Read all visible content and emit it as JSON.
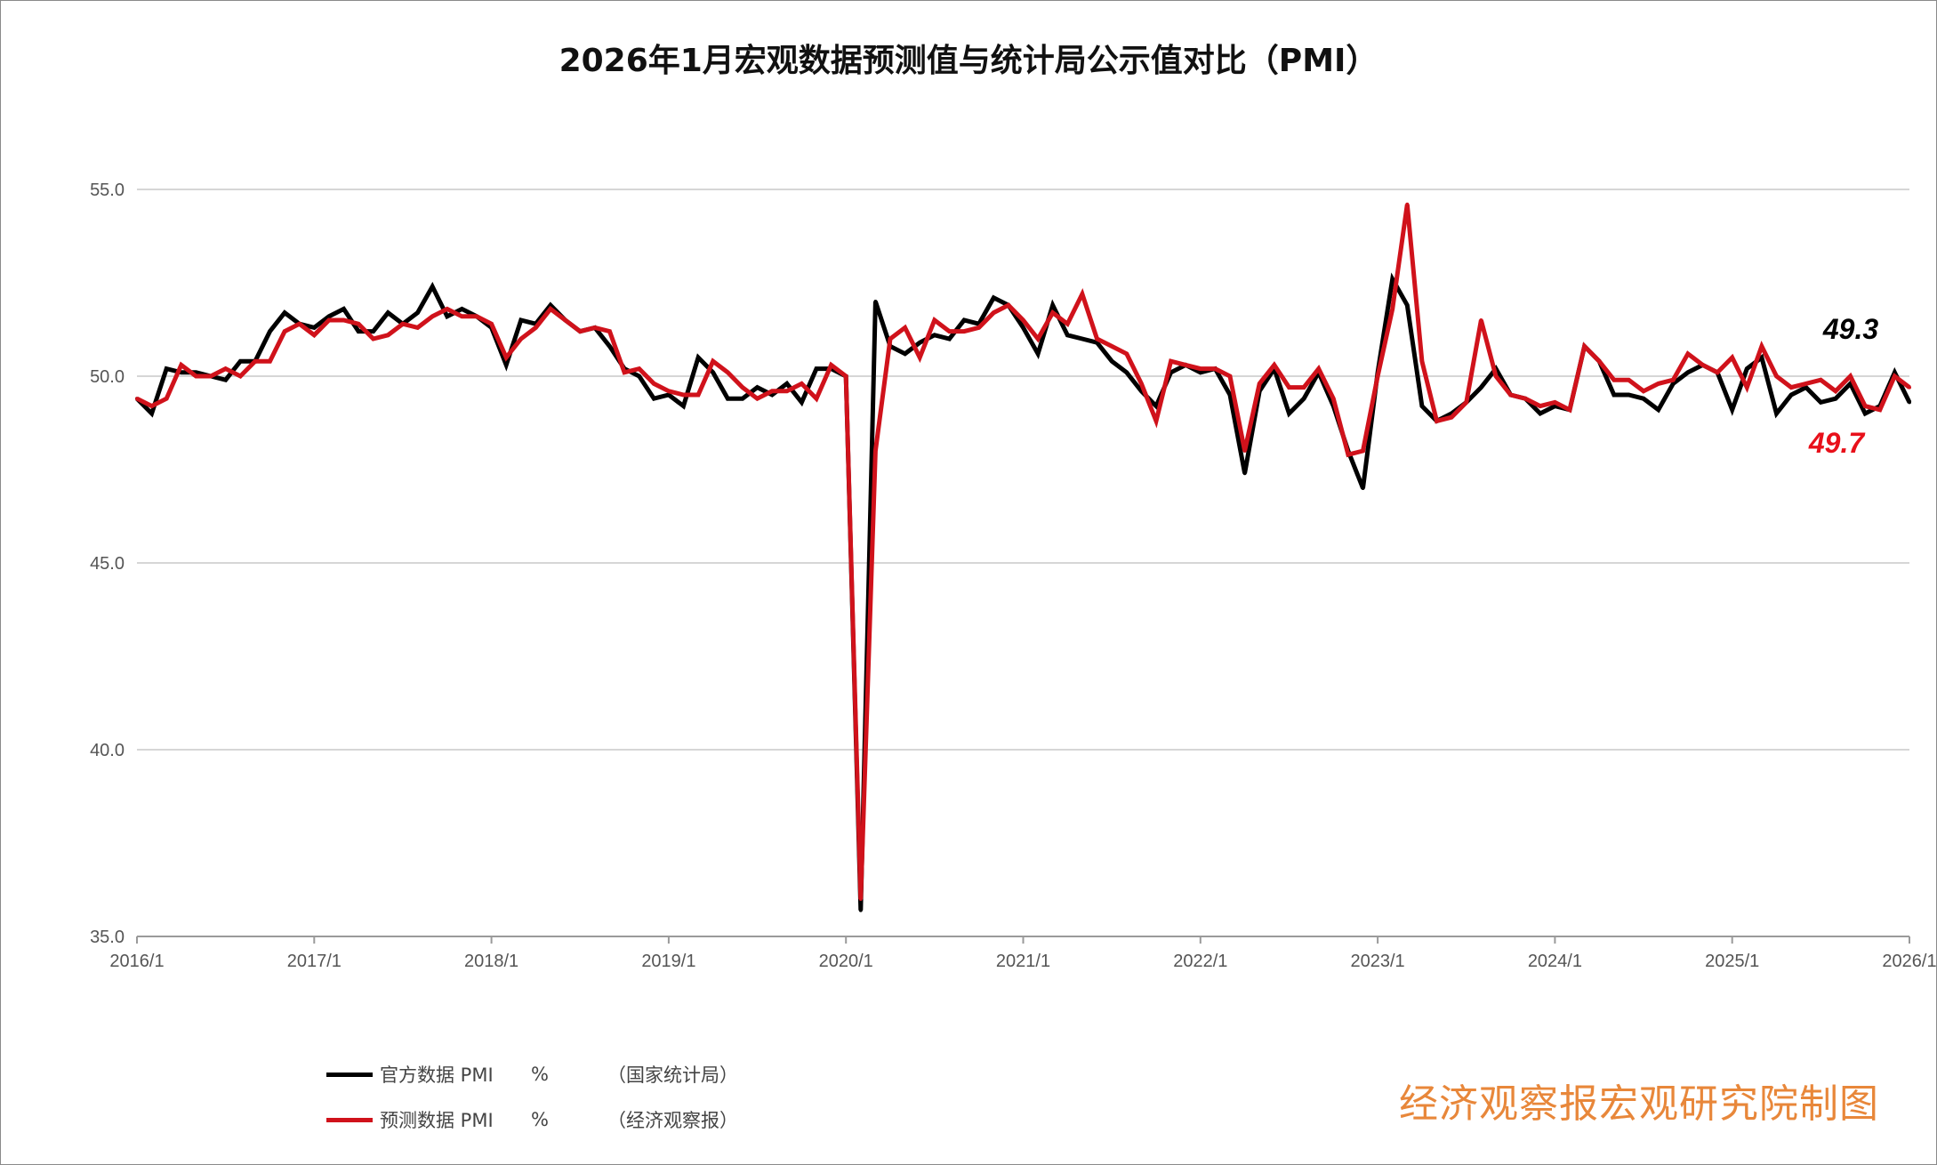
{
  "chart_data": {
    "type": "line",
    "title": "2026年1月宏观数据预测值与统计局公示值对比（PMI）",
    "xlabel": "",
    "ylabel": "",
    "ylim": [
      35,
      55
    ],
    "yticks": [
      "55.0",
      "50.0",
      "45.0",
      "40.0",
      "35.0"
    ],
    "xticks": [
      "2016/1",
      "2017/1",
      "2018/1",
      "2019/1",
      "2020/1",
      "2021/1",
      "2022/1",
      "2023/1",
      "2024/1",
      "2025/1",
      "2026/1"
    ],
    "x_start": "2016/1",
    "x_end": "2026/1",
    "grid": "horizontal",
    "legend_position": "bottom-left",
    "series": [
      {
        "name": "官方数据 PMI",
        "unit": "%",
        "source": "（国家统计局）",
        "color": "#000000",
        "values": [
          49.4,
          49.0,
          50.2,
          50.1,
          50.1,
          50.0,
          49.9,
          50.4,
          50.4,
          51.2,
          51.7,
          51.4,
          51.3,
          51.6,
          51.8,
          51.2,
          51.2,
          51.7,
          51.4,
          51.7,
          52.4,
          51.6,
          51.8,
          51.6,
          51.3,
          50.3,
          51.5,
          51.4,
          51.9,
          51.5,
          51.2,
          51.3,
          50.8,
          50.2,
          50.0,
          49.4,
          49.5,
          49.2,
          50.5,
          50.1,
          49.4,
          49.4,
          49.7,
          49.5,
          49.8,
          49.3,
          50.2,
          50.2,
          50.0,
          35.7,
          52.0,
          50.8,
          50.6,
          50.9,
          51.1,
          51.0,
          51.5,
          51.4,
          52.1,
          51.9,
          51.3,
          50.6,
          51.9,
          51.1,
          51.0,
          50.9,
          50.4,
          50.1,
          49.6,
          49.2,
          50.1,
          50.3,
          50.1,
          50.2,
          49.5,
          47.4,
          49.6,
          50.2,
          49.0,
          49.4,
          50.1,
          49.2,
          48.0,
          47.0,
          50.1,
          52.6,
          51.9,
          49.2,
          48.8,
          49.0,
          49.3,
          49.7,
          50.2,
          49.5,
          49.4,
          49.0,
          49.2,
          49.1,
          50.8,
          50.4,
          49.5,
          49.5,
          49.4,
          49.1,
          49.8,
          50.1,
          50.3,
          50.1,
          49.1,
          50.2,
          50.5,
          49.0,
          49.5,
          49.7,
          49.3,
          49.4,
          49.8,
          49.0,
          49.2,
          50.1,
          49.3
        ]
      },
      {
        "name": "预测数据 PMI",
        "unit": "%",
        "source": "（经济观察报）",
        "color": "#d0121b",
        "values": [
          49.4,
          49.2,
          49.4,
          50.3,
          50.0,
          50.0,
          50.2,
          50.0,
          50.4,
          50.4,
          51.2,
          51.4,
          51.1,
          51.5,
          51.5,
          51.4,
          51.0,
          51.1,
          51.4,
          51.3,
          51.6,
          51.8,
          51.6,
          51.6,
          51.4,
          50.5,
          51.0,
          51.3,
          51.8,
          51.5,
          51.2,
          51.3,
          51.2,
          50.1,
          50.2,
          49.8,
          49.6,
          49.5,
          49.5,
          50.4,
          50.1,
          49.7,
          49.4,
          49.6,
          49.6,
          49.8,
          49.4,
          50.3,
          50.0,
          36.0,
          48.0,
          51.0,
          51.3,
          50.5,
          51.5,
          51.2,
          51.2,
          51.3,
          51.7,
          51.9,
          51.5,
          51.0,
          51.7,
          51.4,
          52.2,
          51.0,
          50.8,
          50.6,
          49.8,
          48.8,
          50.4,
          50.3,
          50.2,
          50.2,
          50.0,
          48.0,
          49.8,
          50.3,
          49.7,
          49.7,
          50.2,
          49.4,
          47.9,
          48.0,
          50.0,
          51.8,
          54.6,
          50.4,
          48.8,
          48.9,
          49.3,
          51.5,
          50.0,
          49.5,
          49.4,
          49.2,
          49.3,
          49.1,
          50.8,
          50.4,
          49.9,
          49.9,
          49.6,
          49.8,
          49.9,
          50.6,
          50.3,
          50.1,
          50.5,
          49.7,
          50.8,
          50.0,
          49.7,
          49.8,
          49.9,
          49.6,
          50.0,
          49.2,
          49.1,
          50.0,
          49.7
        ]
      }
    ],
    "annotations": [
      {
        "text": "49.3",
        "color": "#000000"
      },
      {
        "text": "49.7",
        "color": "#e8101a"
      }
    ]
  },
  "watermark": "经济观察报宏观研究院制图"
}
